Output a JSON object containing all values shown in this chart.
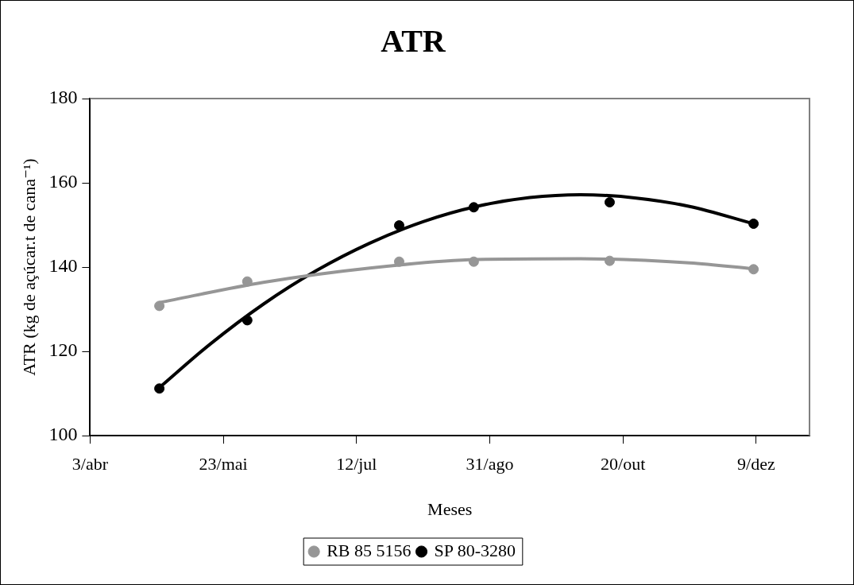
{
  "chart_data": {
    "type": "scatter",
    "title": "ATR",
    "xlabel": "Meses",
    "ylabel": "ATR (kg de açúcar.t de cana⁻¹)",
    "xlim": [
      "--04-03",
      "--12-29"
    ],
    "xticks": [
      {
        "value": "--04-03",
        "label": "3/abr"
      },
      {
        "value": "--05-23",
        "label": "23/mai"
      },
      {
        "value": "--07-12",
        "label": "12/jul"
      },
      {
        "value": "--08-31",
        "label": "31/ago"
      },
      {
        "value": "--10-20",
        "label": "20/out"
      },
      {
        "value": "--12-09",
        "label": "9/dez"
      }
    ],
    "ylim": [
      100,
      180
    ],
    "yticks": [
      100,
      120,
      140,
      160,
      180
    ],
    "grid": false,
    "legend": "bottom",
    "marker": "circle",
    "series": [
      {
        "name": "RB 85 5156",
        "color": "#969696",
        "x": [
          "--04-29",
          "--06-01",
          "--07-28",
          "--08-25",
          "--10-15",
          "--12-08"
        ],
        "values": [
          130.8,
          136.6,
          141.3,
          141.3,
          141.5,
          139.5
        ]
      },
      {
        "name": "SP 80-3280",
        "color": "#000000",
        "x": [
          "--04-29",
          "--06-01",
          "--07-28",
          "--08-25",
          "--10-15",
          "--12-08"
        ],
        "values": [
          111.2,
          127.4,
          149.9,
          154.2,
          155.4,
          150.3
        ]
      },
      {
        "type": "line",
        "marker": "none",
        "color": "#969696",
        "x": [
          "--04-29",
          "--06-07",
          "--07-17",
          "--08-26",
          "--10-04",
          "--11-14",
          "--12-08"
        ],
        "values": [
          131.6,
          136.4,
          139.8,
          141.8,
          142.0,
          141.0,
          139.6
        ]
      },
      {
        "type": "line",
        "marker": "none",
        "color": "#000000",
        "x": [
          "--04-29",
          "--05-18",
          "--06-07",
          "--06-27",
          "--07-17",
          "--08-06",
          "--08-26",
          "--09-15",
          "--10-04",
          "--10-25",
          "--11-14",
          "--12-08"
        ],
        "values": [
          111.4,
          121.7,
          131.2,
          139.2,
          145.7,
          150.8,
          154.4,
          156.5,
          157.2,
          156.4,
          154.4,
          150.3
        ]
      }
    ]
  }
}
